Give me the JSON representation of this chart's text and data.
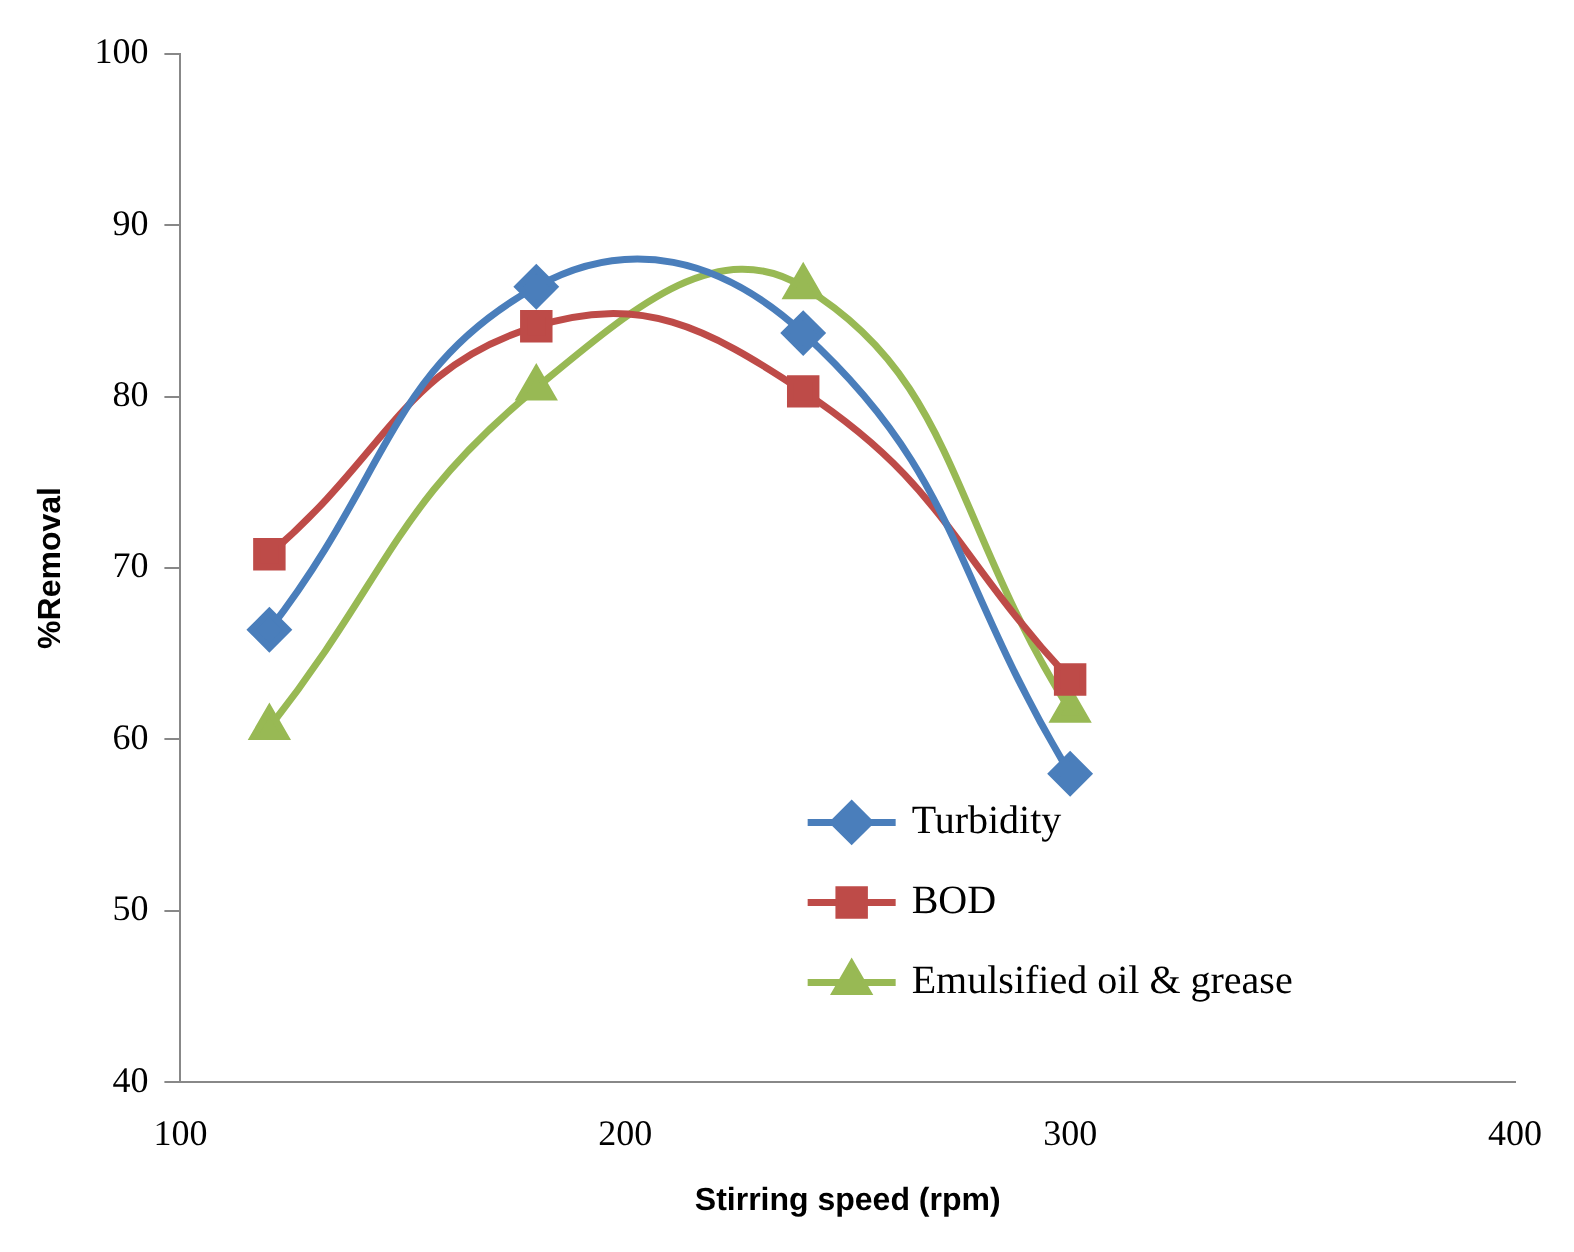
{
  "chart_data": {
    "type": "line",
    "xlabel": "Stirring speed (rpm)",
    "ylabel": "%Removal",
    "x": [
      120,
      180,
      240,
      300
    ],
    "series": [
      {
        "name": "Turbidity",
        "color": "#4a7ebb",
        "marker": "diamond",
        "values": [
          66.4,
          86.4,
          83.7,
          58.0
        ]
      },
      {
        "name": "BOD",
        "color": "#be4b48",
        "marker": "square",
        "values": [
          70.8,
          84.1,
          80.3,
          63.5
        ]
      },
      {
        "name": "Emulsified oil & grease",
        "color": "#98b954",
        "marker": "triangle",
        "values": [
          60.7,
          80.5,
          86.4,
          61.7
        ]
      }
    ],
    "xlim": [
      100,
      400
    ],
    "xticks": [
      100,
      200,
      300,
      400
    ],
    "ylim": [
      40,
      100
    ],
    "yticks": [
      40,
      50,
      60,
      70,
      80,
      90,
      100
    ],
    "grid": false,
    "legend": "bottom right"
  }
}
